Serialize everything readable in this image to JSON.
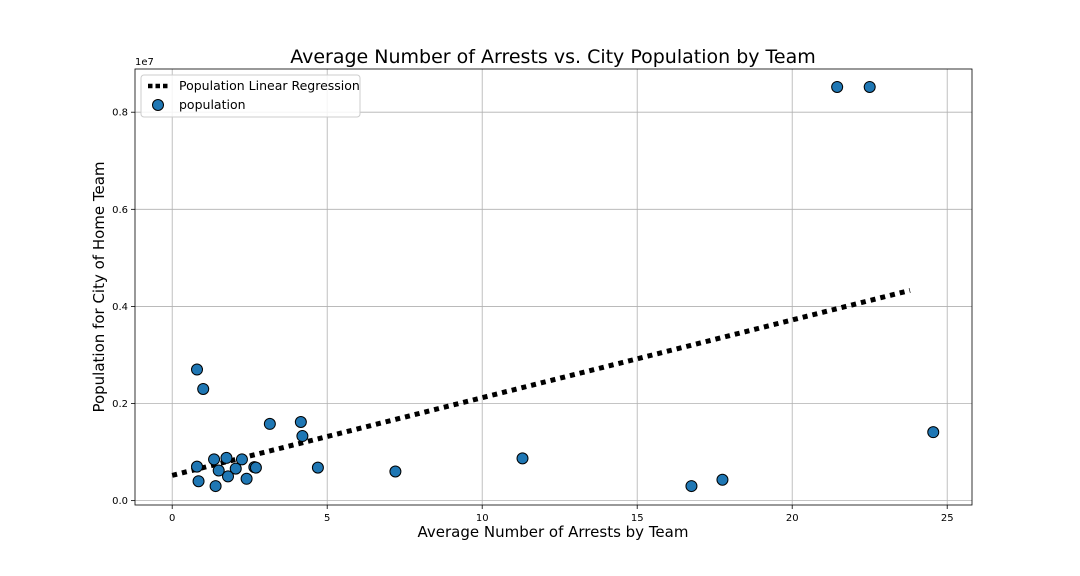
{
  "chart_data": {
    "type": "scatter",
    "title": "Average Number of Arrests vs. City Population by Team",
    "xlabel": "Average Number of Arrests by Team",
    "ylabel": "Population for City of Home Team",
    "y_offset_label": "1e7",
    "xlim": [
      -1.2,
      25.8
    ],
    "ylim": [
      -0.0009,
      0.0889
    ],
    "xticks": [
      {
        "value": 0,
        "label": "0"
      },
      {
        "value": 5,
        "label": "5"
      },
      {
        "value": 10,
        "label": "10"
      },
      {
        "value": 15,
        "label": "15"
      },
      {
        "value": 20,
        "label": "20"
      },
      {
        "value": 25,
        "label": "25"
      }
    ],
    "yticks": [
      {
        "value": 0.0,
        "label": "0.0"
      },
      {
        "value": 0.02,
        "label": "0.2"
      },
      {
        "value": 0.04,
        "label": "0.4"
      },
      {
        "value": 0.06,
        "label": "0.6"
      },
      {
        "value": 0.08,
        "label": "0.8"
      }
    ],
    "grid": true,
    "legend_position": "top-left",
    "series": [
      {
        "name": "Population Linear Regression",
        "kind": "line",
        "style": "dotted",
        "color": "#000000",
        "x": [
          0,
          23.8
        ],
        "y": [
          0.0052,
          0.0433
        ]
      },
      {
        "name": "population",
        "kind": "scatter",
        "color": "#1f77b4",
        "edgecolor": "#000000",
        "x": [
          0.8,
          1.0,
          0.8,
          0.85,
          1.35,
          1.4,
          1.5,
          1.75,
          1.8,
          2.05,
          2.25,
          2.4,
          2.65,
          2.7,
          3.15,
          4.15,
          4.2,
          4.7,
          7.2,
          11.3,
          16.75,
          17.75,
          21.45,
          22.5,
          24.55
        ],
        "y": [
          0.027,
          0.023,
          0.007,
          0.004,
          0.0085,
          0.003,
          0.0062,
          0.0088,
          0.005,
          0.0066,
          0.0085,
          0.0045,
          0.0069,
          0.0068,
          0.0158,
          0.0162,
          0.0133,
          0.0068,
          0.006,
          0.0087,
          0.003,
          0.0043,
          0.0852,
          0.0852,
          0.0141
        ]
      }
    ]
  }
}
